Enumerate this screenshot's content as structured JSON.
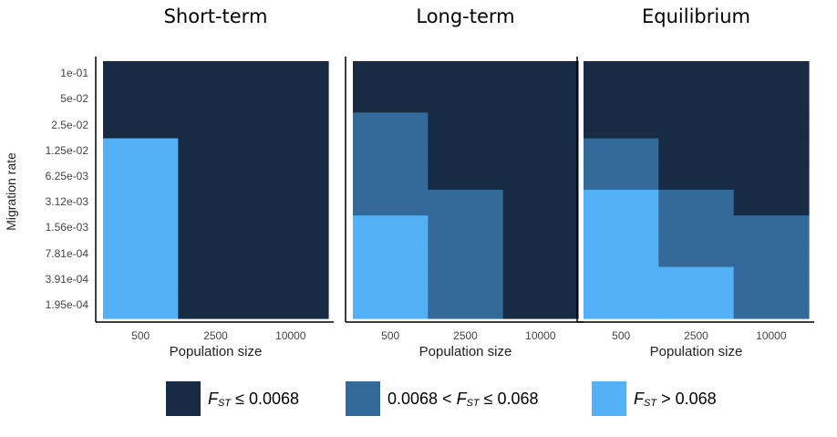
{
  "chart_data": {
    "type": "heatmap",
    "ylabel": "Migration rate",
    "xlabel": "Population size",
    "y_categories": [
      "1e-01",
      "5e-02",
      "2.5e-02",
      "1.25e-02",
      "6.25e-03",
      "3.12e-03",
      "1.56e-03",
      "7.81e-04",
      "3.91e-04",
      "1.95e-04"
    ],
    "x_categories": [
      "500",
      "2500",
      "10000"
    ],
    "colors": {
      "low": "#172b45",
      "mid": "#336a9a",
      "high": "#54b0f7"
    },
    "legend": [
      {
        "class": "low",
        "label_pre": "",
        "fst": "F",
        "fst_sub": "ST",
        "label_post": " ≤ 0.0068"
      },
      {
        "class": "mid",
        "label_pre": "0.0068 < ",
        "fst": "F",
        "fst_sub": "ST",
        "label_post": " ≤ 0.068"
      },
      {
        "class": "high",
        "label_pre": "",
        "fst": "F",
        "fst_sub": "ST",
        "label_post": " > 0.068"
      }
    ],
    "panels": [
      {
        "title": "Short-term",
        "cells": [
          [
            "low",
            "low",
            "low"
          ],
          [
            "low",
            "low",
            "low"
          ],
          [
            "low",
            "low",
            "low"
          ],
          [
            "high",
            "low",
            "low"
          ],
          [
            "high",
            "low",
            "low"
          ],
          [
            "high",
            "low",
            "low"
          ],
          [
            "high",
            "low",
            "low"
          ],
          [
            "high",
            "low",
            "low"
          ],
          [
            "high",
            "low",
            "low"
          ],
          [
            "high",
            "low",
            "low"
          ]
        ]
      },
      {
        "title": "Long-term",
        "cells": [
          [
            "low",
            "low",
            "low"
          ],
          [
            "low",
            "low",
            "low"
          ],
          [
            "mid",
            "low",
            "low"
          ],
          [
            "mid",
            "low",
            "low"
          ],
          [
            "mid",
            "low",
            "low"
          ],
          [
            "mid",
            "mid",
            "low"
          ],
          [
            "high",
            "mid",
            "low"
          ],
          [
            "high",
            "mid",
            "low"
          ],
          [
            "high",
            "mid",
            "low"
          ],
          [
            "high",
            "mid",
            "low"
          ]
        ]
      },
      {
        "title": "Equilibrium",
        "cells": [
          [
            "low",
            "low",
            "low"
          ],
          [
            "low",
            "low",
            "low"
          ],
          [
            "low",
            "low",
            "low"
          ],
          [
            "mid",
            "low",
            "low"
          ],
          [
            "mid",
            "low",
            "low"
          ],
          [
            "high",
            "mid",
            "low"
          ],
          [
            "high",
            "mid",
            "mid"
          ],
          [
            "high",
            "mid",
            "mid"
          ],
          [
            "high",
            "high",
            "mid"
          ],
          [
            "high",
            "high",
            "mid"
          ]
        ]
      }
    ]
  }
}
